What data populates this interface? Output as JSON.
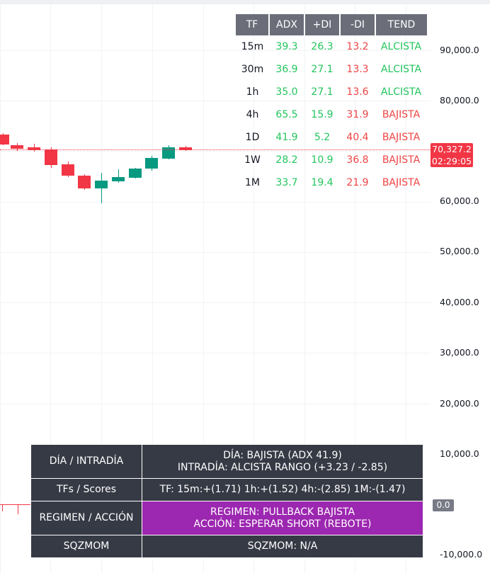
{
  "price_axis": {
    "ticks": [
      "90,000.0",
      "80,000.0",
      "70,000.0",
      "60,000.0",
      "50,000.0",
      "40,000.0",
      "30,000.0",
      "20,000.0",
      "10,000.0",
      "0.0",
      "-10,000.0"
    ],
    "last_price": "70,327.2",
    "countdown": "02:29:05",
    "zero_label": "0.0"
  },
  "adx_table": {
    "headers": [
      "TF",
      "ADX",
      "+DI",
      "-DI",
      "TEND"
    ],
    "rows": [
      {
        "tf": "15m",
        "adx": "39.3",
        "pdi": "26.3",
        "mdi": "13.2",
        "tend": "ALCISTA"
      },
      {
        "tf": "30m",
        "adx": "36.9",
        "pdi": "27.1",
        "mdi": "13.3",
        "tend": "ALCISTA"
      },
      {
        "tf": "1h",
        "adx": "35.0",
        "pdi": "27.1",
        "mdi": "13.6",
        "tend": "ALCISTA"
      },
      {
        "tf": "4h",
        "adx": "65.5",
        "pdi": "15.9",
        "mdi": "31.9",
        "tend": "BAJISTA"
      },
      {
        "tf": "1D",
        "adx": "41.9",
        "pdi": "5.2",
        "mdi": "40.4",
        "tend": "BAJISTA"
      },
      {
        "tf": "1W",
        "adx": "28.2",
        "pdi": "10.9",
        "mdi": "36.8",
        "tend": "BAJISTA"
      },
      {
        "tf": "1M",
        "adx": "33.7",
        "pdi": "19.4",
        "mdi": "21.9",
        "tend": "BAJISTA"
      }
    ]
  },
  "summary": {
    "dia_label": "DÍA / INTRADÍA",
    "dia_line1": "DÍA: BAJISTA (ADX 41.9)",
    "dia_line2": "INTRADÍA: ALCISTA RANGO  (+3.23 / -2.85)",
    "tfs_label": "TFs / Scores",
    "tfs_value": "TF: 15m:+(1.71)  1h:+(1.52)  4h:-(2.85)  1M:-(1.47)",
    "regimen_label": "REGIMEN / ACCIÓN",
    "regimen_line1": "REGIMEN: PULLBACK BAJISTA",
    "regimen_line2": "ACCIÓN: ESPERAR SHORT (REBOTE)",
    "sqz_label": "SQZMOM",
    "sqz_value": "SQZMOM: N/A"
  },
  "colors": {
    "bull": "#089981",
    "bear": "#f23645",
    "alcista": "#22c55e",
    "bajista": "#ef4444",
    "purple": "#9c27b0",
    "table_dark": "#363a45"
  }
}
